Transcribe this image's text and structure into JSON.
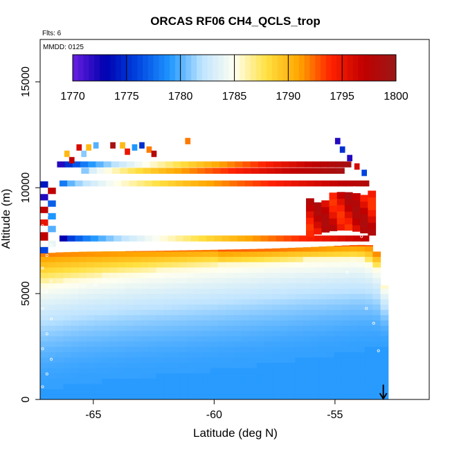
{
  "chart_data": {
    "type": "heatmap",
    "title": "ORCAS RF06 CH4_QCLS_trop",
    "flights_note": "Flts: 6",
    "date_note": "MMDD: 0125",
    "xlabel": "Latitude (deg N)",
    "ylabel": "Altitude (m)",
    "xlim": [
      -67.2,
      -51.1
    ],
    "ylim": [
      0,
      17000
    ],
    "xticks": [
      -65,
      -60,
      -55
    ],
    "xtick_labels": [
      "-65",
      "-60",
      "-55"
    ],
    "yticks": [
      0,
      5000,
      10000,
      15000
    ],
    "ytick_labels": [
      "0",
      "5000",
      "10000",
      "15000"
    ],
    "colorbar": {
      "min": 1770,
      "max": 1800,
      "ticks": [
        1770,
        1775,
        1780,
        1785,
        1790,
        1795,
        1800
      ],
      "tick_labels": [
        "1770",
        "1775",
        "1780",
        "1785",
        "1790",
        "1795",
        "1800"
      ],
      "stops": [
        "#6a1fe0",
        "#0000b0",
        "#0044e0",
        "#1e96ff",
        "#bfe4ff",
        "#fffff0",
        "#ffe040",
        "#ffa500",
        "#ff2000",
        "#c00000",
        "#9a1818"
      ],
      "legend_position": "top"
    },
    "boundary_layer": {
      "x": [
        -67.2,
        -66.5,
        -65.8,
        -64.5,
        -63.2,
        -61.5,
        -60.0,
        -58.6,
        -57.2,
        -55.6,
        -54.2,
        -53.4,
        -52.9
      ],
      "top_alt": [
        300,
        450,
        620,
        780,
        950,
        1120,
        1300,
        1480,
        1700,
        1950,
        2200,
        2350,
        2400
      ]
    },
    "mid_layer": {
      "x": [
        -67.2,
        -66.5,
        -65.5,
        -64.0,
        -62.5,
        -61.0,
        -59.5,
        -58.0,
        -56.5,
        -55.2,
        -54.2,
        -53.5,
        -53.1
      ],
      "top_alt": [
        6900,
        6950,
        6980,
        7000,
        7020,
        7050,
        7080,
        7120,
        7180,
        7250,
        7300,
        7280,
        5300
      ],
      "mix_top_alt": [
        5400,
        5500,
        5650,
        5850,
        6000,
        6150,
        6280,
        6400,
        6500,
        6550,
        6600,
        6300,
        5200
      ]
    },
    "upper_tracks": [
      {
        "name": "track-7600",
        "x_start": -66.4,
        "x_end": -53.7,
        "alt": 7600,
        "values_start": 1773,
        "values_end": 1797
      },
      {
        "name": "track-10200",
        "x_start": -66.4,
        "x_end": -53.5,
        "alt": 10200,
        "values_start": 1778,
        "values_end": 1798
      },
      {
        "name": "track-10800",
        "x_start": -65.5,
        "x_end": -54.6,
        "alt": 10800,
        "values_start": 1781,
        "values_end": 1799
      },
      {
        "name": "track-11100",
        "x_start": -66.5,
        "x_end": -54.2,
        "alt": 11100,
        "values_start": 1772,
        "values_end": 1799
      }
    ],
    "high_ch4_patch": {
      "x_start": -56.2,
      "x_end": -53.5,
      "alt_min": 7700,
      "alt_max": 9600,
      "value": 1796
    },
    "sample_points_x": -67.1,
    "arrow_marker": {
      "x": -53.0,
      "alt_top": 700,
      "alt_bottom": 0
    }
  }
}
